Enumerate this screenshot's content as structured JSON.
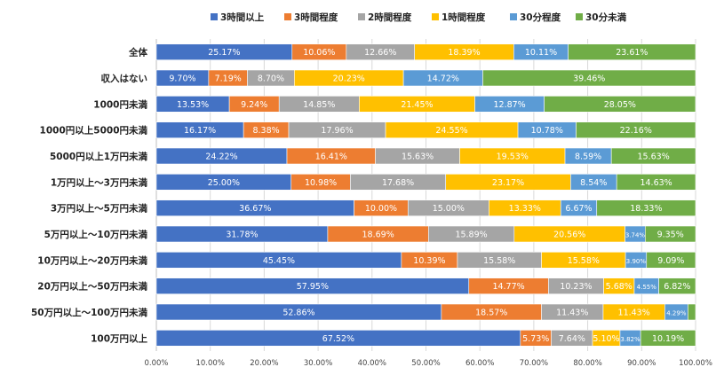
{
  "chart_data": {
    "type": "bar",
    "orientation": "horizontal",
    "stacked": true,
    "percent": true,
    "title": "",
    "xlabel": "",
    "ylabel": "",
    "xlim": [
      0,
      100
    ],
    "x_ticks": [
      "0.00%",
      "10.00%",
      "20.00%",
      "30.00%",
      "40.00%",
      "50.00%",
      "60.00%",
      "70.00%",
      "80.00%",
      "90.00%",
      "100.00%"
    ],
    "grid": true,
    "legend_position": "top",
    "categories": [
      "全体",
      "収入はない",
      "1000円未満",
      "1000円以上5000円未満",
      "5000円以上1万円未満",
      "1万円以上～3万円未満",
      "3万円以上～5万円未満",
      "5万円以上～10万円未満",
      "10万円以上～20万円未満",
      "20万円以上～50万円未満",
      "50万円以上～100万円未満",
      "100万円以上"
    ],
    "series": [
      {
        "name": "3時間以上",
        "color": "#4472C4",
        "values": [
          25.17,
          9.7,
          13.53,
          16.17,
          24.22,
          25.0,
          36.67,
          31.78,
          45.45,
          57.95,
          52.86,
          67.52
        ],
        "labels": [
          "25.17%",
          "9.70%",
          "13.53%",
          "16.17%",
          "24.22%",
          "25.00%",
          "36.67%",
          "31.78%",
          "45.45%",
          "57.95%",
          "52.86%",
          "67.52%"
        ]
      },
      {
        "name": "3時間程度",
        "color": "#ED7D31",
        "values": [
          10.06,
          7.19,
          9.24,
          8.38,
          16.41,
          10.98,
          10.0,
          18.69,
          10.39,
          14.77,
          18.57,
          5.73
        ],
        "labels": [
          "10.06%",
          "7.19%",
          "9.24%",
          "8.38%",
          "16.41%",
          "10.98%",
          "10.00%",
          "18.69%",
          "10.39%",
          "14.77%",
          "18.57%",
          "5.73%"
        ]
      },
      {
        "name": "2時間程度",
        "color": "#A5A5A5",
        "values": [
          12.66,
          8.7,
          14.85,
          17.96,
          15.63,
          17.68,
          15.0,
          15.89,
          15.58,
          10.23,
          11.43,
          7.64
        ],
        "labels": [
          "12.66%",
          "8.70%",
          "14.85%",
          "17.96%",
          "15.63%",
          "17.68%",
          "15.00%",
          "15.89%",
          "15.58%",
          "10.23%",
          "11.43%",
          "7.64%"
        ]
      },
      {
        "name": "1時間程度",
        "color": "#FFC000",
        "values": [
          18.39,
          20.23,
          21.45,
          24.55,
          19.53,
          23.17,
          13.33,
          20.56,
          15.58,
          5.68,
          11.43,
          5.1
        ],
        "labels": [
          "18.39%",
          "20.23%",
          "21.45%",
          "24.55%",
          "19.53%",
          "23.17%",
          "13.33%",
          "20.56%",
          "15.58%",
          "5.68%",
          "11.43%",
          "5.10%"
        ]
      },
      {
        "name": "30分程度",
        "color": "#5B9BD5",
        "values": [
          10.11,
          14.72,
          12.87,
          10.78,
          8.59,
          8.54,
          6.67,
          3.74,
          3.9,
          4.55,
          4.29,
          3.82
        ],
        "labels": [
          "10.11%",
          "14.72%",
          "12.87%",
          "10.78%",
          "8.59%",
          "8.54%",
          "6.67%",
          "3.74%",
          "3.90%",
          "4.55%",
          "4.29%",
          "3.82%"
        ]
      },
      {
        "name": "30分未満",
        "color": "#70AD47",
        "values": [
          23.61,
          39.46,
          28.05,
          22.16,
          15.63,
          14.63,
          18.33,
          9.35,
          9.09,
          6.82,
          1.42,
          10.19
        ],
        "labels": [
          "23.61%",
          "39.46%",
          "28.05%",
          "22.16%",
          "15.63%",
          "14.63%",
          "18.33%",
          "9.35%",
          "9.09%",
          "6.82%",
          "",
          "10.19%"
        ]
      }
    ]
  }
}
